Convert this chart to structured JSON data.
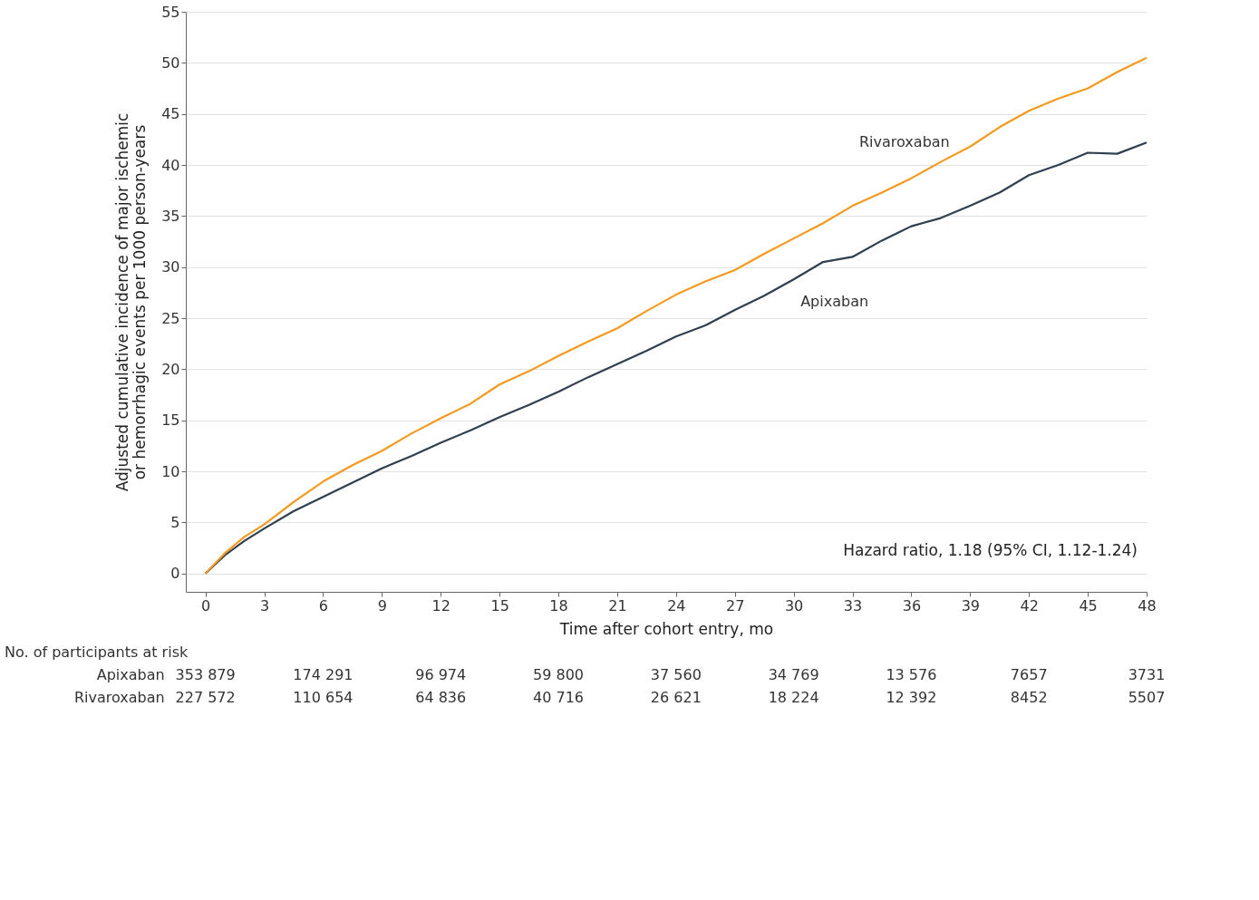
{
  "chart_data": {
    "type": "line",
    "xlabel": "Time after cohort entry, mo",
    "ylabel": "Adjusted cumulative incidence of major ischemic\nor hemorrhagic events per 1000 person-years",
    "x": [
      0,
      1,
      2,
      3,
      4.5,
      6,
      7.5,
      9,
      10.5,
      12,
      13.5,
      15,
      16.5,
      18,
      19.5,
      21,
      22.5,
      24,
      25.5,
      27,
      28.5,
      30,
      31.5,
      33,
      34.5,
      36,
      37.5,
      39,
      40.5,
      42,
      43.5,
      45,
      46.5,
      48
    ],
    "series": [
      {
        "name": "Apixaban",
        "color": "#2f3f4f",
        "values": [
          0,
          1.8,
          3.2,
          4.4,
          6.1,
          7.5,
          8.9,
          10.3,
          11.5,
          12.8,
          14.0,
          15.3,
          16.5,
          17.8,
          19.2,
          20.5,
          21.8,
          23.2,
          24.3,
          25.8,
          27.2,
          28.8,
          30.5,
          31.0,
          32.6,
          34.0,
          34.8,
          36.0,
          37.3,
          39.0,
          40.0,
          41.2,
          41.1,
          42.2
        ]
      },
      {
        "name": "Rivaroxaban",
        "color": "#f39a1e",
        "values": [
          0,
          2.0,
          3.6,
          4.8,
          7.0,
          9.0,
          10.6,
          12.0,
          13.7,
          15.2,
          16.6,
          18.5,
          19.8,
          21.3,
          22.7,
          24.0,
          25.7,
          27.3,
          28.6,
          29.7,
          31.3,
          32.8,
          34.3,
          36.0,
          37.3,
          38.7,
          40.3,
          41.8,
          43.7,
          45.3,
          46.5,
          47.5,
          49.1,
          50.5
        ]
      }
    ],
    "xlim": [
      -1,
      48
    ],
    "xticks": [
      0,
      3,
      6,
      9,
      12,
      15,
      18,
      21,
      24,
      27,
      30,
      33,
      36,
      39,
      42,
      45,
      48
    ],
    "ylim": [
      -1.8,
      55
    ],
    "yticks": [
      0,
      5,
      10,
      15,
      20,
      25,
      30,
      35,
      40,
      45,
      50,
      55
    ],
    "grid": "y",
    "legend": false,
    "line_style": "solid",
    "marker": "none",
    "annotations": [
      "Hazard ratio, 1.18 (95% CI, 1.12-1.24)",
      "No. of participants at risk",
      "Apixaban",
      "353 879",
      "174 291",
      "96 974",
      "59 800",
      "37 560",
      "34 769",
      "13 576",
      "7657",
      "3731",
      "Rivaroxaban",
      "227 572",
      "110 654",
      "64 836",
      "40 716",
      "26 621",
      "18 224",
      "12 392",
      "8452",
      "5507"
    ]
  }
}
